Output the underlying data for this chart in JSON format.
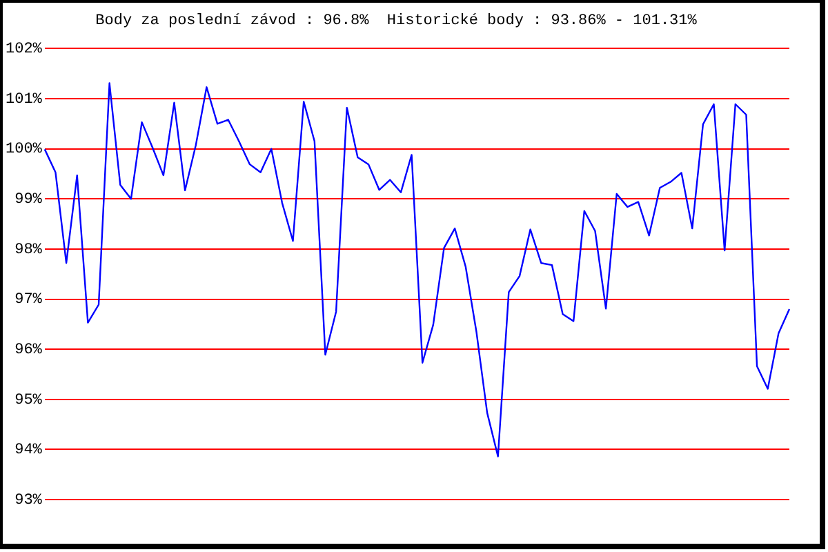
{
  "chart_data": {
    "type": "line",
    "title": "Body za poslední závod : 96.8%  Historické body : 93.86% - 101.31%",
    "categories": [
      null,
      null,
      null,
      null,
      null,
      null,
      null,
      null,
      null,
      null,
      null,
      null,
      null,
      null,
      null,
      null,
      null,
      null,
      null,
      null,
      null,
      null,
      null,
      null,
      null,
      null,
      null,
      null,
      null,
      null,
      null,
      null,
      null,
      null,
      null,
      null,
      null,
      null,
      null,
      null,
      null,
      null,
      null,
      null,
      null,
      null,
      null,
      null,
      null,
      null,
      null,
      null,
      null,
      null,
      null,
      null,
      null,
      null,
      null,
      null,
      null,
      null,
      null,
      null,
      null,
      null,
      null,
      null,
      null,
      null
    ],
    "series": [
      {
        "color": "#0000ff",
        "values": [
          99.99,
          99.53,
          97.72,
          99.47,
          96.53,
          96.89,
          101.31,
          99.28,
          99.0,
          100.53,
          100.02,
          99.47,
          100.92,
          99.17,
          100.07,
          101.23,
          100.5,
          100.58,
          100.15,
          99.69,
          99.53,
          100.0,
          98.92,
          98.16,
          100.94,
          100.15,
          95.89,
          96.75,
          100.82,
          99.83,
          99.69,
          99.18,
          99.38,
          99.13,
          99.88,
          95.73,
          96.49,
          98.02,
          98.41,
          97.65,
          96.35,
          94.73,
          93.86,
          97.14,
          97.46,
          98.39,
          97.72,
          97.68,
          96.7,
          96.56,
          98.76,
          98.36,
          96.81,
          99.1,
          98.84,
          98.94,
          98.27,
          99.22,
          99.34,
          99.52,
          98.41,
          100.49,
          100.89,
          97.97,
          100.89,
          100.68,
          95.66,
          95.21,
          96.32,
          96.8
        ]
      }
    ],
    "ylim": [
      93,
      102
    ],
    "yticks": [
      {
        "value": 93,
        "label": "93%"
      },
      {
        "value": 94,
        "label": "94%"
      },
      {
        "value": 95,
        "label": "95%"
      },
      {
        "value": 96,
        "label": "96%"
      },
      {
        "value": 97,
        "label": "97%"
      },
      {
        "value": 98,
        "label": "98%"
      },
      {
        "value": 99,
        "label": "99%"
      },
      {
        "value": 100,
        "label": "100%"
      },
      {
        "value": 101,
        "label": "101%"
      },
      {
        "value": 102,
        "label": "102%"
      }
    ],
    "grid": "y",
    "tick_labels": "y",
    "legend": false,
    "marker": "none",
    "line_style": "solid"
  }
}
